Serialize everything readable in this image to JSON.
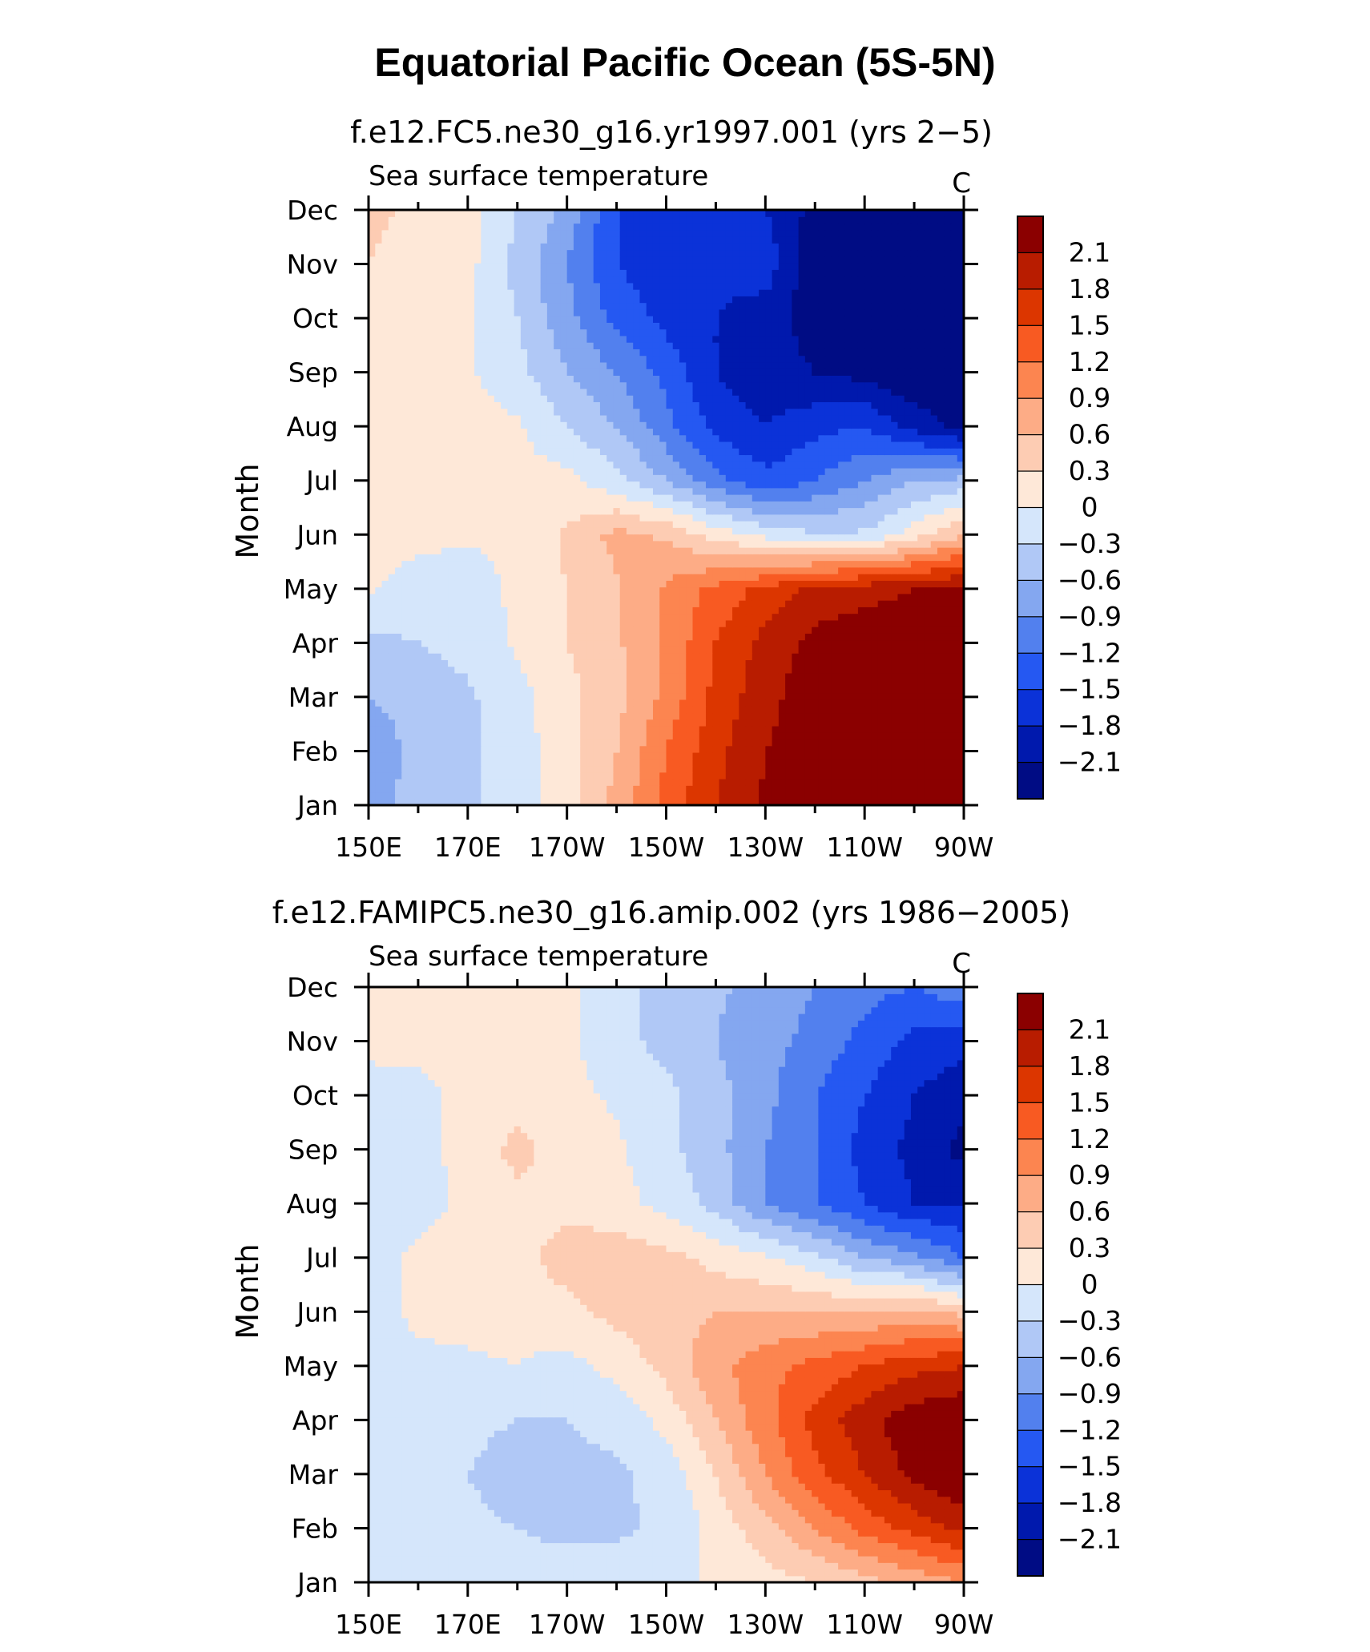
{
  "figure": {
    "title": "Equatorial Pacific Ocean (5S-5N)"
  },
  "colorbar": {
    "levels": [
      "2.1",
      "1.8",
      "1.5",
      "1.2",
      "0.9",
      "0.6",
      "0.3",
      "0",
      "−0.3",
      "−0.6",
      "−0.9",
      "−1.2",
      "−1.5",
      "−1.8",
      "−2.1"
    ],
    "colors": [
      "#8b0000",
      "#b81c00",
      "#dc3600",
      "#f85a22",
      "#fc8550",
      "#fdac86",
      "#fdccb3",
      "#fee8d8",
      "#d5e6fb",
      "#b0c8f6",
      "#84a7f0",
      "#5280ee",
      "#2558f2",
      "#0b32d8",
      "#0019ad",
      "#000c84"
    ]
  },
  "chart_data": [
    {
      "type": "heatmap",
      "title": "f.e12.FC5.ne30_g16.yr1997.001 (yrs 2−5)",
      "left_label": "Sea surface temperature",
      "right_label": "C",
      "ylabel": "Month",
      "x_ticks": [
        "150E",
        "170E",
        "170W",
        "150W",
        "130W",
        "110W",
        "90W"
      ],
      "y_ticks": [
        "Jan",
        "Feb",
        "Mar",
        "Apr",
        "May",
        "Jun",
        "Jul",
        "Aug",
        "Sep",
        "Oct",
        "Nov",
        "Dec"
      ],
      "x_range": [
        "150E",
        "90W"
      ],
      "y_range": [
        "Jan",
        "Dec"
      ],
      "values": [
        [
          -0.7,
          -0.5,
          -0.35,
          -0.15,
          0.2,
          0.7,
          1.3,
          1.8,
          2.15,
          2.3,
          2.3,
          2.3,
          2.3
        ],
        [
          -0.8,
          -0.5,
          -0.35,
          -0.15,
          0.2,
          0.6,
          1.2,
          1.7,
          2.1,
          2.3,
          2.3,
          2.3,
          2.3
        ],
        [
          -0.6,
          -0.5,
          -0.35,
          -0.1,
          0.2,
          0.5,
          1.0,
          1.6,
          2.0,
          2.3,
          2.3,
          2.3,
          2.3
        ],
        [
          -0.4,
          -0.3,
          -0.2,
          0.05,
          0.3,
          0.55,
          0.95,
          1.5,
          1.9,
          2.2,
          2.3,
          2.3,
          2.3
        ],
        [
          0.05,
          -0.15,
          -0.25,
          0.1,
          0.3,
          0.55,
          0.95,
          1.3,
          1.6,
          1.9,
          2.0,
          2.1,
          2.2
        ],
        [
          0.1,
          0.1,
          0.05,
          0.1,
          0.35,
          0.7,
          0.55,
          0.2,
          -0.1,
          -0.25,
          -0.25,
          0.15,
          0.6
        ],
        [
          0.1,
          0.1,
          0.1,
          0.1,
          0.1,
          -0.2,
          -0.6,
          -1.1,
          -1.4,
          -1.2,
          -0.9,
          -0.6,
          -0.5
        ],
        [
          0.1,
          0.15,
          0.1,
          0.05,
          -0.3,
          -0.6,
          -1.1,
          -1.6,
          -1.8,
          -1.6,
          -1.5,
          -1.9,
          -2.2
        ],
        [
          0.1,
          0.1,
          0.05,
          -0.2,
          -0.6,
          -0.9,
          -1.3,
          -1.8,
          -2.0,
          -2.1,
          -2.2,
          -2.4,
          -2.4
        ],
        [
          0.1,
          0.1,
          0.05,
          -0.3,
          -0.8,
          -1.3,
          -1.6,
          -1.8,
          -2.0,
          -2.2,
          -2.4,
          -2.4,
          -2.4
        ],
        [
          0.3,
          0.2,
          0.1,
          -0.4,
          -0.9,
          -1.5,
          -1.7,
          -1.7,
          -1.6,
          -2.4,
          -2.4,
          -2.4,
          -2.4
        ],
        [
          0.35,
          0.25,
          0.1,
          -0.3,
          -0.7,
          -1.5,
          -1.8,
          -1.8,
          -1.8,
          -2.2,
          -2.4,
          -2.4,
          -2.3
        ]
      ]
    },
    {
      "type": "heatmap",
      "title": "f.e12.FAMIPC5.ne30_g16.amip.002 (yrs 1986−2005)",
      "left_label": "Sea surface temperature",
      "right_label": "C",
      "ylabel": "Month",
      "x_ticks": [
        "150E",
        "170E",
        "170W",
        "150W",
        "130W",
        "110W",
        "90W"
      ],
      "y_ticks": [
        "Jan",
        "Feb",
        "Mar",
        "Apr",
        "May",
        "Jun",
        "Jul",
        "Aug",
        "Sep",
        "Oct",
        "Nov",
        "Dec"
      ],
      "x_range": [
        "150E",
        "90W"
      ],
      "y_range": [
        "Jan",
        "Dec"
      ],
      "values": [
        [
          -0.1,
          -0.1,
          -0.15,
          -0.2,
          -0.2,
          -0.15,
          -0.1,
          0.05,
          0.15,
          0.3,
          0.5,
          0.7,
          0.9
        ],
        [
          -0.1,
          -0.15,
          -0.25,
          -0.3,
          -0.35,
          -0.35,
          -0.25,
          0.1,
          0.5,
          0.9,
          1.3,
          1.6,
          1.9
        ],
        [
          -0.1,
          -0.15,
          -0.3,
          -0.4,
          -0.4,
          -0.35,
          -0.2,
          0.3,
          0.9,
          1.4,
          1.8,
          2.2,
          2.4
        ],
        [
          -0.15,
          -0.1,
          -0.25,
          -0.3,
          -0.3,
          -0.2,
          0.1,
          0.6,
          1.1,
          1.6,
          2.0,
          2.3,
          2.4
        ],
        [
          -0.2,
          -0.1,
          -0.05,
          0.0,
          -0.1,
          0.1,
          0.4,
          0.8,
          1.1,
          1.3,
          1.5,
          1.7,
          1.8
        ],
        [
          -0.2,
          0.1,
          0.1,
          0.1,
          0.2,
          0.4,
          0.5,
          0.6,
          0.6,
          0.6,
          0.6,
          0.7,
          0.5
        ],
        [
          -0.2,
          0.1,
          0.15,
          0.2,
          0.45,
          0.5,
          0.4,
          0.2,
          0.05,
          -0.2,
          -0.6,
          -0.8,
          -1.2
        ],
        [
          -0.25,
          -0.15,
          0.1,
          0.2,
          0.2,
          0.1,
          -0.1,
          -0.4,
          -0.9,
          -1.2,
          -1.5,
          -1.8,
          -1.8
        ],
        [
          -0.2,
          -0.1,
          0.1,
          0.4,
          0.15,
          0.05,
          -0.2,
          -0.5,
          -0.9,
          -1.2,
          -1.6,
          -1.9,
          -2.2
        ],
        [
          -0.15,
          -0.1,
          0.1,
          0.15,
          0.1,
          -0.05,
          -0.2,
          -0.5,
          -0.8,
          -1.2,
          -1.5,
          -1.8,
          -2.0
        ],
        [
          0.1,
          0.1,
          0.1,
          0.1,
          0.05,
          -0.2,
          -0.4,
          -0.6,
          -0.8,
          -1.0,
          -1.3,
          -1.6,
          -1.7
        ],
        [
          0.1,
          0.1,
          0.1,
          0.1,
          0.05,
          -0.2,
          -0.4,
          -0.55,
          -0.7,
          -0.9,
          -1.1,
          -1.2,
          -1.0
        ]
      ]
    }
  ]
}
